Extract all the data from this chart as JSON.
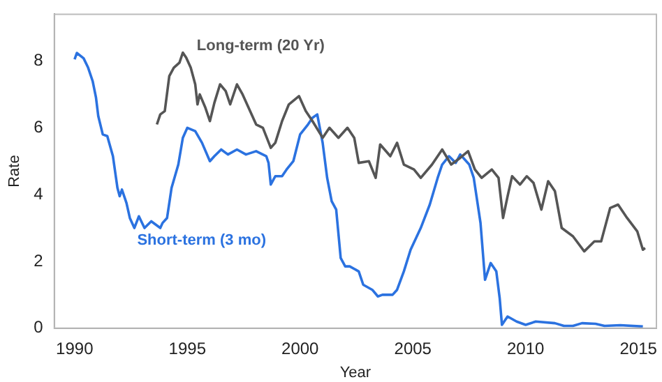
{
  "chart_data": {
    "type": "line",
    "xlabel": "Year",
    "ylabel": "Rate",
    "xlim": [
      1989.1,
      2015.8
    ],
    "xticks": [
      1990,
      1995,
      2000,
      2005,
      2010,
      2015
    ],
    "ylim": [
      0,
      9.4
    ],
    "yticks": [
      0,
      2,
      4,
      6,
      8
    ],
    "grid": false,
    "legend": false,
    "marker": "none",
    "line_style": "solid",
    "series": [
      {
        "name": "Long-term (20 Yr)",
        "color": "#555555",
        "x": [
          1993.65,
          1993.8,
          1994.0,
          1994.2,
          1994.4,
          1994.65,
          1994.8,
          1994.95,
          1995.15,
          1995.35,
          1995.45,
          1995.55,
          1995.8,
          1996.0,
          1996.2,
          1996.45,
          1996.7,
          1996.9,
          1997.2,
          1997.45,
          1997.75,
          1998.05,
          1998.35,
          1998.7,
          1998.9,
          1999.2,
          1999.5,
          1999.95,
          2000.25,
          2000.55,
          2001.0,
          2001.3,
          2001.7,
          2002.1,
          2002.4,
          2002.6,
          2003.05,
          2003.35,
          2003.55,
          2004.0,
          2004.3,
          2004.6,
          2005.05,
          2005.35,
          2005.85,
          2006.3,
          2006.7,
          2007.1,
          2007.45,
          2007.75,
          2008.05,
          2008.5,
          2008.8,
          2009.0,
          2009.2,
          2009.4,
          2009.75,
          2010.05,
          2010.35,
          2010.7,
          2011.0,
          2011.3,
          2011.6,
          2012.1,
          2012.6,
          2013.05,
          2013.35,
          2013.75,
          2014.1,
          2014.5,
          2014.95,
          2015.2,
          2015.3
        ],
        "values": [
          6.1,
          6.4,
          6.5,
          7.55,
          7.8,
          7.95,
          8.25,
          8.1,
          7.8,
          7.3,
          6.7,
          7.0,
          6.6,
          6.2,
          6.75,
          7.3,
          7.1,
          6.7,
          7.3,
          7.0,
          6.55,
          6.1,
          6.0,
          5.4,
          5.55,
          6.2,
          6.7,
          6.95,
          6.5,
          6.2,
          5.7,
          6.0,
          5.7,
          6.0,
          5.7,
          4.95,
          5.0,
          4.5,
          5.5,
          5.15,
          5.55,
          4.9,
          4.75,
          4.5,
          4.9,
          5.35,
          4.9,
          5.1,
          5.3,
          4.75,
          4.5,
          4.75,
          4.5,
          3.3,
          3.95,
          4.55,
          4.3,
          4.55,
          4.35,
          3.55,
          4.4,
          4.1,
          3.0,
          2.75,
          2.3,
          2.6,
          2.6,
          3.6,
          3.7,
          3.3,
          2.9,
          2.35,
          2.4
        ]
      },
      {
        "name": "Short-term (3 mo)",
        "color": "#2b72e0",
        "x": [
          1990.0,
          1990.1,
          1990.4,
          1990.6,
          1990.8,
          1990.95,
          1991.05,
          1991.25,
          1991.45,
          1991.7,
          1991.9,
          1992.0,
          1992.1,
          1992.3,
          1992.45,
          1992.65,
          1992.85,
          1993.1,
          1993.4,
          1993.8,
          1993.9,
          1994.1,
          1994.3,
          1994.6,
          1994.8,
          1995.0,
          1995.35,
          1995.65,
          1996.0,
          1996.2,
          1996.5,
          1996.8,
          1997.2,
          1997.6,
          1998.05,
          1998.5,
          1998.6,
          1998.7,
          1998.9,
          1999.2,
          1999.4,
          1999.7,
          2000.0,
          2000.35,
          2000.55,
          2000.76,
          2001.0,
          2001.2,
          2001.4,
          2001.6,
          2001.8,
          2002.0,
          2002.2,
          2002.6,
          2002.8,
          2003.2,
          2003.45,
          2003.65,
          2004.1,
          2004.3,
          2004.6,
          2004.9,
          2005.35,
          2005.75,
          2006.1,
          2006.3,
          2006.6,
          2006.9,
          2007.1,
          2007.5,
          2007.7,
          2008.0,
          2008.2,
          2008.45,
          2008.7,
          2008.85,
          2008.95,
          2009.2,
          2009.6,
          2010.0,
          2010.45,
          2011.3,
          2011.7,
          2012.1,
          2012.5,
          2013.1,
          2013.5,
          2014.2,
          2015.2
        ],
        "values": [
          8.05,
          8.24,
          8.08,
          7.8,
          7.4,
          6.9,
          6.35,
          5.8,
          5.75,
          5.15,
          4.2,
          3.95,
          4.15,
          3.75,
          3.3,
          3.0,
          3.35,
          3.0,
          3.2,
          3.0,
          3.15,
          3.3,
          4.2,
          4.9,
          5.7,
          6.0,
          5.9,
          5.55,
          5.0,
          5.15,
          5.35,
          5.2,
          5.35,
          5.2,
          5.3,
          5.15,
          4.95,
          4.3,
          4.55,
          4.55,
          4.75,
          5.0,
          5.8,
          6.1,
          6.3,
          6.4,
          5.55,
          4.5,
          3.8,
          3.55,
          2.1,
          1.85,
          1.85,
          1.7,
          1.3,
          1.15,
          0.95,
          1.0,
          1.0,
          1.15,
          1.7,
          2.35,
          3.0,
          3.7,
          4.5,
          4.9,
          5.15,
          4.95,
          5.2,
          4.9,
          4.5,
          3.15,
          1.45,
          1.95,
          1.7,
          0.9,
          0.1,
          0.35,
          0.2,
          0.1,
          0.2,
          0.15,
          0.07,
          0.07,
          0.15,
          0.13,
          0.07,
          0.09,
          0.05
        ]
      }
    ]
  }
}
